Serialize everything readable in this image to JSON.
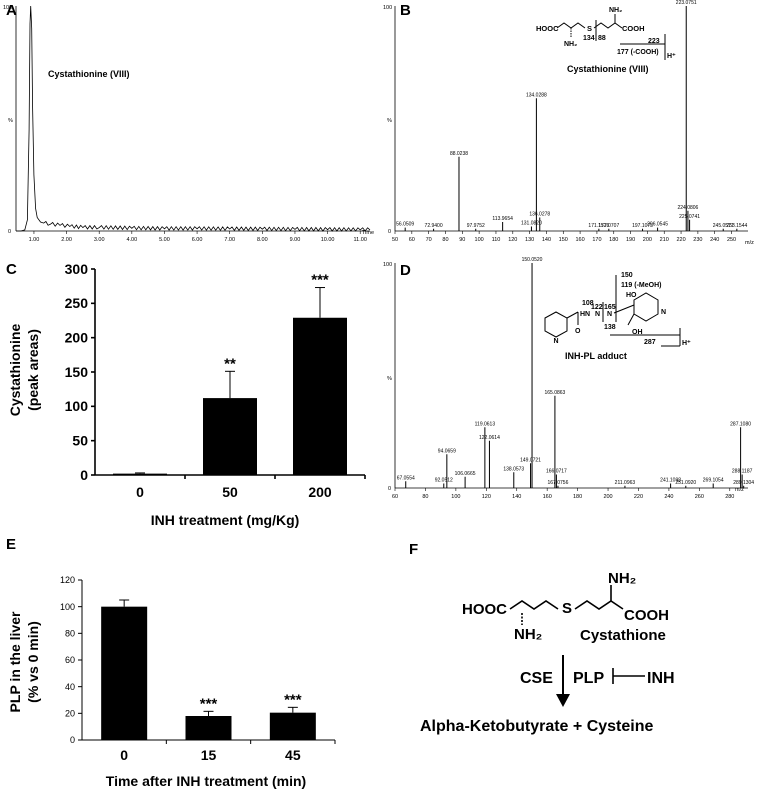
{
  "panels": {
    "A": {
      "letter": "A",
      "label": "Cystathionine (VIII)",
      "y_top": "100",
      "y_bottom": "0",
      "y_unit": "%",
      "x_unit": "Time"
    },
    "B": {
      "letter": "B",
      "title": "Cystathionine (VIII)",
      "y_top": "100",
      "y_bottom": "0",
      "y_unit": "%",
      "x_unit": "m/z",
      "struct": {
        "hooc": "HOOC",
        "s": "S",
        "nh2_top": "NH₂",
        "cooh": "COOH",
        "nh2_bottom": "NH₂",
        "f134": "134",
        "f88": "88",
        "f223": "223",
        "f177": "177 (-COOH)",
        "hplus": "H⁺"
      }
    },
    "C": {
      "letter": "C",
      "ylabel_1": "Cystathionine",
      "ylabel_2": "(peak areas)",
      "xlabel": "INH treatment (mg/Kg)"
    },
    "D": {
      "letter": "D",
      "title": "INH-PL adduct",
      "y_top": "100",
      "y_bottom": "0",
      "y_unit": "%",
      "x_unit": "m/z",
      "struct": {
        "f150": "150",
        "f119": "119 (-MeOH)",
        "ho": "HO",
        "f108": "108",
        "f122": "122",
        "f165": "165",
        "hn": "HN",
        "n1": "N",
        "n2": "N",
        "f138": "138",
        "o": "O",
        "oh": "OH",
        "n_ring": "N",
        "n_ring2": "N",
        "f287": "287",
        "hplus": "H⁺"
      }
    },
    "E": {
      "letter": "E",
      "ylabel_1": "PLP in the liver",
      "ylabel_2": "(% vs 0 min)",
      "xlabel": "Time after INH treatment (min)"
    },
    "F": {
      "letter": "F",
      "hooc": "HOOC",
      "s": "S",
      "nh2_top": "NH₂",
      "cooh": "COOH",
      "nh2_bottom": "NH₂",
      "name": "Cystathione",
      "enzyme": "CSE",
      "cofactor": "PLP",
      "inhibitor": "INH",
      "products": "Alpha-Ketobutyrate + Cysteine"
    }
  },
  "chart_data": [
    {
      "panel": "A",
      "type": "line",
      "x_ticks": [
        "1.00",
        "2.00",
        "3.00",
        "4.00",
        "5.00",
        "6.00",
        "7.00",
        "8.00",
        "9.00",
        "10.00",
        "11.00"
      ],
      "xlim": [
        0.45,
        11.3
      ],
      "ylim": [
        0,
        100
      ],
      "x": [
        0.45,
        0.6,
        0.72,
        0.8,
        0.85,
        0.88,
        0.9,
        0.93,
        0.96,
        1.0,
        1.05,
        1.1,
        1.2,
        1.3,
        1.5,
        1.8,
        2.1,
        2.5,
        3.0,
        4.0,
        5.0,
        6.0,
        7.0,
        8.0,
        9.0,
        10.0,
        11.0,
        11.3
      ],
      "y": [
        0,
        0,
        0.5,
        5,
        45,
        92,
        100,
        90,
        55,
        25,
        10,
        6,
        4,
        3.5,
        3,
        2.5,
        2,
        1.5,
        1.5,
        1.2,
        1.0,
        1.0,
        0.9,
        0.8,
        0.7,
        0.6,
        0.5,
        0.5
      ],
      "peak_label": "Cystathionine (VIII)"
    },
    {
      "panel": "B",
      "type": "bar",
      "subtype": "mass_spectrum",
      "x_ticks": [
        "50",
        "60",
        "70",
        "80",
        "90",
        "100",
        "110",
        "120",
        "130",
        "140",
        "150",
        "160",
        "170",
        "180",
        "190",
        "200",
        "210",
        "220",
        "230",
        "240",
        "250"
      ],
      "xlim": [
        50,
        258
      ],
      "ylim": [
        0,
        100
      ],
      "peaks": [
        {
          "mz": 56.0509,
          "rel": 1.5
        },
        {
          "mz": 72.94,
          "rel": 1
        },
        {
          "mz": 88.0238,
          "rel": 33
        },
        {
          "mz": 97.9752,
          "rel": 1
        },
        {
          "mz": 113.9654,
          "rel": 4
        },
        {
          "mz": 131.082,
          "rel": 2
        },
        {
          "mz": 134.0288,
          "rel": 59
        },
        {
          "mz": 136.0278,
          "rel": 6
        },
        {
          "mz": 171.1526,
          "rel": 1
        },
        {
          "mz": 177.0707,
          "rel": 1
        },
        {
          "mz": 197.1073,
          "rel": 1
        },
        {
          "mz": 206.0545,
          "rel": 1.5
        },
        {
          "mz": 223.0751,
          "rel": 100
        },
        {
          "mz": 224.0806,
          "rel": 9
        },
        {
          "mz": 225.0741,
          "rel": 5
        },
        {
          "mz": 245.0577,
          "rel": 1
        },
        {
          "mz": 253.1544,
          "rel": 1
        }
      ]
    },
    {
      "panel": "C",
      "type": "bar",
      "categories": [
        "0",
        "50",
        "200"
      ],
      "values": [
        2,
        112,
        229
      ],
      "errors": [
        1,
        39,
        44
      ],
      "significance": [
        "",
        "**",
        "***"
      ],
      "y_ticks": [
        "0",
        "50",
        "100",
        "150",
        "200",
        "250",
        "300"
      ],
      "ylim": [
        0,
        300
      ],
      "xlabel": "INH treatment (mg/Kg)",
      "ylabel": "Cystathionine (peak areas)"
    },
    {
      "panel": "D",
      "type": "bar",
      "subtype": "mass_spectrum",
      "x_ticks": [
        "60",
        "80",
        "100",
        "120",
        "140",
        "160",
        "180",
        "200",
        "220",
        "240",
        "260",
        "280"
      ],
      "xlim": [
        60,
        290
      ],
      "ylim": [
        0,
        100
      ],
      "peaks": [
        {
          "mz": 67.0554,
          "rel": 3
        },
        {
          "mz": 92.0512,
          "rel": 2
        },
        {
          "mz": 94.0659,
          "rel": 15
        },
        {
          "mz": 106.0665,
          "rel": 5
        },
        {
          "mz": 119.0613,
          "rel": 27
        },
        {
          "mz": 122.0614,
          "rel": 21
        },
        {
          "mz": 138.0573,
          "rel": 7
        },
        {
          "mz": 149.0721,
          "rel": 11
        },
        {
          "mz": 150.052,
          "rel": 100
        },
        {
          "mz": 165.0863,
          "rel": 41
        },
        {
          "mz": 166.0717,
          "rel": 6
        },
        {
          "mz": 167.0756,
          "rel": 1
        },
        {
          "mz": 211.0963,
          "rel": 1
        },
        {
          "mz": 241.1098,
          "rel": 2
        },
        {
          "mz": 251.092,
          "rel": 1
        },
        {
          "mz": 269.1054,
          "rel": 2
        },
        {
          "mz": 287.108,
          "rel": 27
        },
        {
          "mz": 288.1187,
          "rel": 6
        },
        {
          "mz": 289.1304,
          "rel": 1
        }
      ]
    },
    {
      "panel": "E",
      "type": "bar",
      "categories": [
        "0",
        "15",
        "45"
      ],
      "values": [
        100,
        18,
        20.5
      ],
      "errors": [
        5,
        3.5,
        4
      ],
      "significance": [
        "",
        "***",
        "***"
      ],
      "y_ticks": [
        "0",
        "20",
        "40",
        "60",
        "80",
        "100",
        "120"
      ],
      "ylim": [
        0,
        120
      ],
      "xlabel": "Time after INH treatment (min)",
      "ylabel": "PLP in the liver (% vs 0 min)"
    }
  ]
}
